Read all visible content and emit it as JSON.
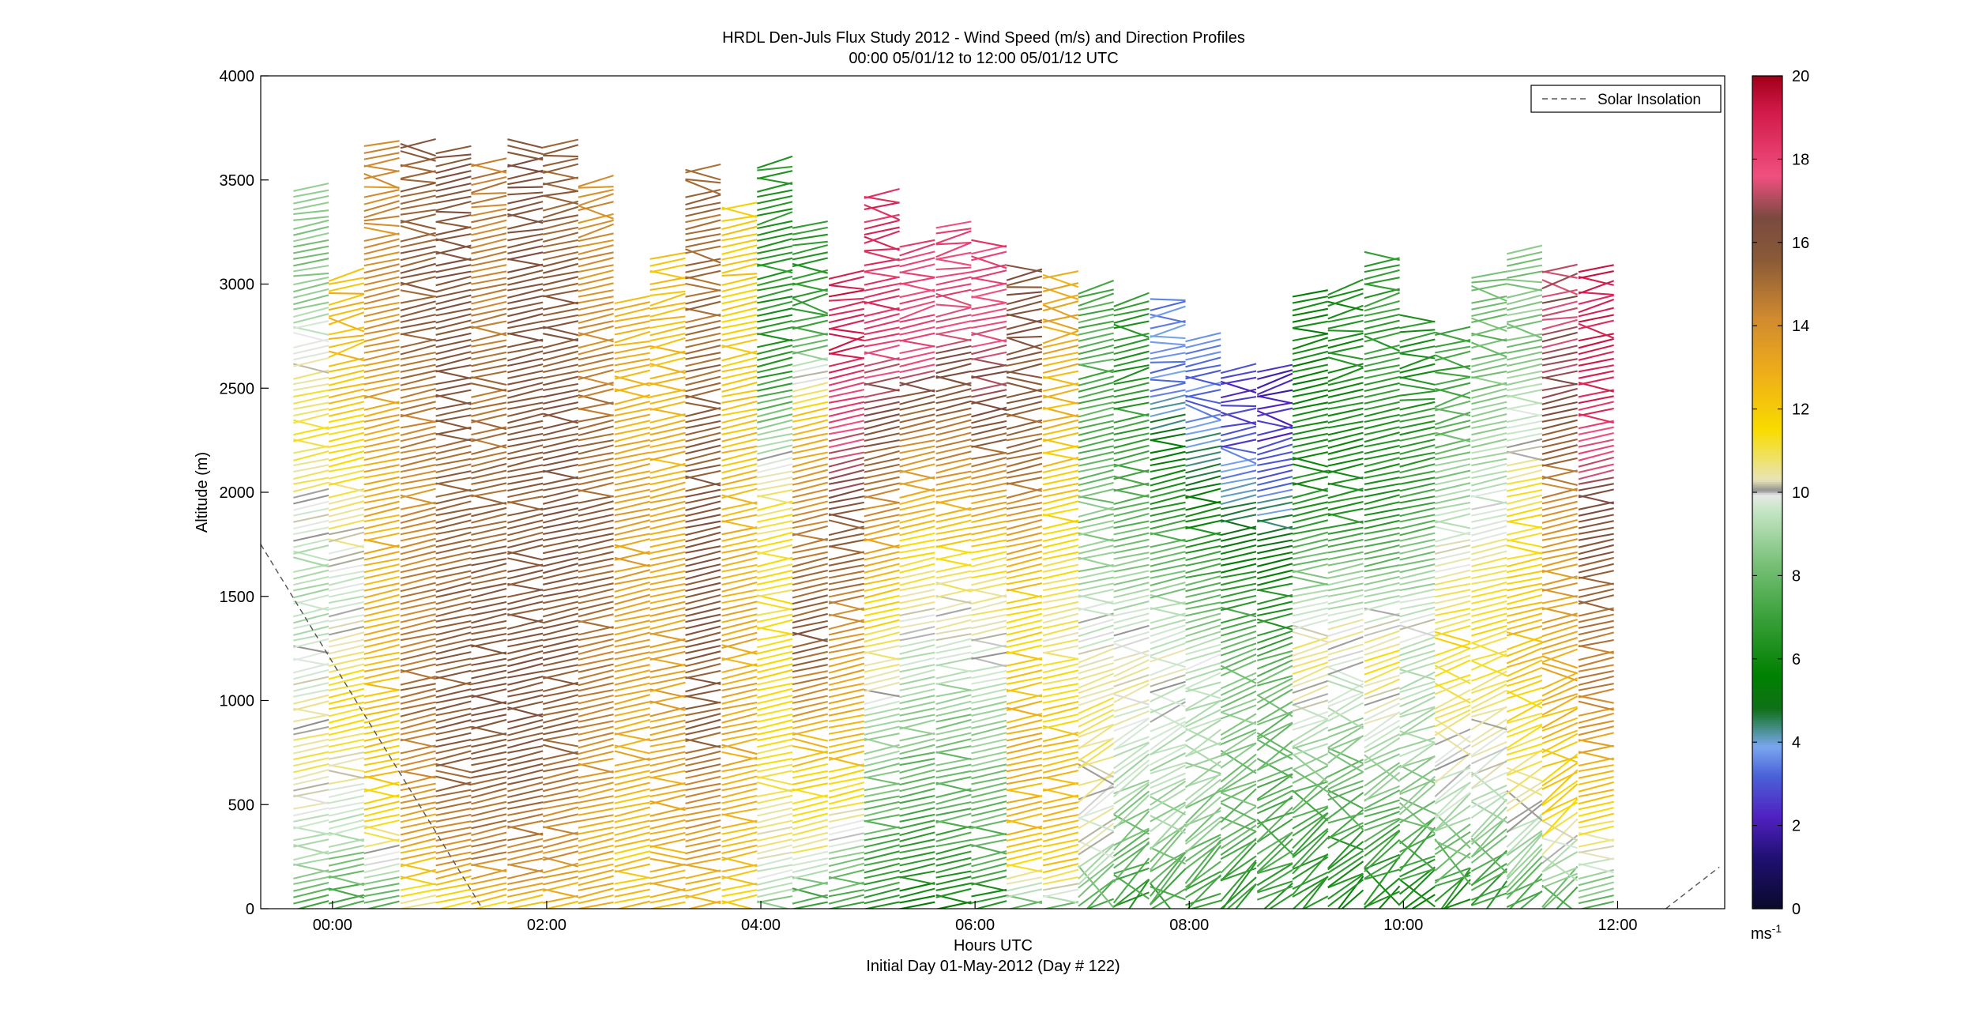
{
  "chart_data": {
    "type": "wind_barb_profile",
    "title": "HRDL Den-Juls Flux Study 2012 - Wind Speed (m/s) and Direction Profiles",
    "subtitle": "00:00 05/01/12 to 12:00 05/01/12  UTC",
    "xlabel": "Hours UTC",
    "xlabel2": "Initial Day 01-May-2012 (Day # 122)",
    "ylabel": "Altitude (m)",
    "xlim_hours": [
      -0.67,
      13.0
    ],
    "ylim": [
      0,
      4000
    ],
    "x_ticks": [
      {
        "value": 0,
        "label": "00:00"
      },
      {
        "value": 2,
        "label": "02:00"
      },
      {
        "value": 4,
        "label": "04:00"
      },
      {
        "value": 6,
        "label": "06:00"
      },
      {
        "value": 8,
        "label": "08:00"
      },
      {
        "value": 10,
        "label": "10:00"
      },
      {
        "value": 12,
        "label": "12:00"
      }
    ],
    "y_ticks": [
      {
        "value": 0,
        "label": "0"
      },
      {
        "value": 500,
        "label": "500"
      },
      {
        "value": 1000,
        "label": "1000"
      },
      {
        "value": 1500,
        "label": "1500"
      },
      {
        "value": 2000,
        "label": "2000"
      },
      {
        "value": 2500,
        "label": "2500"
      },
      {
        "value": 3000,
        "label": "3000"
      },
      {
        "value": 3500,
        "label": "3500"
      },
      {
        "value": 4000,
        "label": "4000"
      }
    ],
    "legend": {
      "entries": [
        {
          "name": "Solar Insolation",
          "style": "dashed",
          "color": "#555555"
        }
      ],
      "location": "top-right"
    },
    "colorbar": {
      "unit": "ms",
      "unit_exponent": "-1",
      "range": [
        0,
        20
      ],
      "tick_labels": [
        "0",
        "2",
        "4",
        "6",
        "8",
        "10",
        "12",
        "14",
        "16",
        "18",
        "20"
      ],
      "stops": [
        {
          "v": 0,
          "c": "#0a0a2a"
        },
        {
          "v": 1.2,
          "c": "#1e1070"
        },
        {
          "v": 2.2,
          "c": "#5020c0"
        },
        {
          "v": 3.2,
          "c": "#4a62d8"
        },
        {
          "v": 3.9,
          "c": "#7aa6f0"
        },
        {
          "v": 4.3,
          "c": "#4a9090"
        },
        {
          "v": 4.8,
          "c": "#107018"
        },
        {
          "v": 5.6,
          "c": "#008000"
        },
        {
          "v": 7.0,
          "c": "#3aa03a"
        },
        {
          "v": 8.3,
          "c": "#78c078"
        },
        {
          "v": 9.6,
          "c": "#c8e6c8"
        },
        {
          "v": 9.95,
          "c": "#e8e8e8"
        },
        {
          "v": 10.05,
          "c": "#909090"
        },
        {
          "v": 10.3,
          "c": "#e8e4b8"
        },
        {
          "v": 11.5,
          "c": "#f8dc00"
        },
        {
          "v": 12.8,
          "c": "#f0b018"
        },
        {
          "v": 14.2,
          "c": "#d08a30"
        },
        {
          "v": 15.6,
          "c": "#8a5a38"
        },
        {
          "v": 16.6,
          "c": "#7a4a40"
        },
        {
          "v": 17.6,
          "c": "#f05080"
        },
        {
          "v": 19.2,
          "c": "#d01848"
        },
        {
          "v": 20,
          "c": "#a00018"
        }
      ]
    },
    "solar_insolation": [
      {
        "hour": -0.67,
        "altitude": 1750
      },
      {
        "hour": 1.4,
        "altitude": 0
      },
      {
        "hour": 12.45,
        "altitude": 0
      },
      {
        "hour": 12.95,
        "altitude": 200
      }
    ],
    "profiles": [
      {
        "hour": -0.2,
        "top": 3470,
        "layers": [
          [
            0,
            7.5
          ],
          [
            300,
            9.2
          ],
          [
            700,
            10.8
          ],
          [
            1600,
            9
          ],
          [
            2300,
            11.5
          ],
          [
            3000,
            8.5
          ]
        ]
      },
      {
        "hour": 0.13,
        "top": 3050,
        "layers": [
          [
            0,
            7.2
          ],
          [
            400,
            9.5
          ],
          [
            1000,
            11.6
          ],
          [
            1500,
            9.6
          ],
          [
            2000,
            11
          ],
          [
            2600,
            12.5
          ]
        ]
      },
      {
        "hour": 0.46,
        "top": 3680,
        "layers": [
          [
            0,
            7
          ],
          [
            150,
            9
          ],
          [
            500,
            12
          ],
          [
            1200,
            12.6
          ],
          [
            2200,
            13
          ],
          [
            3000,
            14
          ]
        ]
      },
      {
        "hour": 0.8,
        "top": 3700,
        "layers": [
          [
            0,
            10.5
          ],
          [
            300,
            13
          ],
          [
            1000,
            15
          ],
          [
            2000,
            14
          ],
          [
            3000,
            15.5
          ]
        ]
      },
      {
        "hour": 1.13,
        "top": 3650,
        "layers": [
          [
            0,
            11
          ],
          [
            200,
            13.5
          ],
          [
            800,
            15.8
          ],
          [
            1800,
            15
          ],
          [
            2800,
            16
          ]
        ]
      },
      {
        "hour": 1.46,
        "top": 3600,
        "layers": [
          [
            0,
            11.5
          ],
          [
            250,
            14.5
          ],
          [
            1000,
            16
          ],
          [
            2000,
            15.2
          ],
          [
            3000,
            14.5
          ]
        ]
      },
      {
        "hour": 1.8,
        "top": 3700,
        "layers": [
          [
            0,
            12
          ],
          [
            200,
            14.2
          ],
          [
            900,
            16
          ],
          [
            2000,
            15.5
          ],
          [
            3000,
            16.2
          ]
        ]
      },
      {
        "hour": 2.13,
        "top": 3700,
        "layers": [
          [
            0,
            12.5
          ],
          [
            250,
            13.8
          ],
          [
            1000,
            15.6
          ],
          [
            2200,
            16
          ],
          [
            3200,
            15.4
          ]
        ]
      },
      {
        "hour": 2.46,
        "top": 3520,
        "layers": [
          [
            0,
            12.8
          ],
          [
            300,
            13
          ],
          [
            900,
            14.2
          ],
          [
            1800,
            15.6
          ],
          [
            2900,
            14
          ]
        ]
      },
      {
        "hour": 2.8,
        "top": 2930,
        "layers": [
          [
            0,
            12.5
          ],
          [
            250,
            12
          ],
          [
            800,
            13
          ],
          [
            1600,
            13.6
          ],
          [
            2400,
            12.8
          ]
        ]
      },
      {
        "hour": 3.13,
        "top": 3150,
        "layers": [
          [
            0,
            12.6
          ],
          [
            300,
            12.8
          ],
          [
            1000,
            13.5
          ],
          [
            1800,
            13
          ],
          [
            2600,
            12.4
          ]
        ]
      },
      {
        "hour": 3.46,
        "top": 3580,
        "layers": [
          [
            0,
            12.5
          ],
          [
            300,
            13.5
          ],
          [
            900,
            15.5
          ],
          [
            1800,
            16
          ],
          [
            2800,
            15
          ]
        ]
      },
      {
        "hour": 3.8,
        "top": 3380,
        "layers": [
          [
            0,
            11.8
          ],
          [
            300,
            12.5
          ],
          [
            1000,
            13.2
          ],
          [
            2000,
            12.6
          ],
          [
            2800,
            12
          ]
        ]
      },
      {
        "hour": 4.13,
        "top": 3600,
        "layers": [
          [
            0,
            8.5
          ],
          [
            300,
            10.5
          ],
          [
            900,
            11.5
          ],
          [
            2000,
            11
          ],
          [
            2600,
            6.5
          ]
        ]
      },
      {
        "hour": 4.46,
        "top": 3300,
        "layers": [
          [
            0,
            6.5
          ],
          [
            300,
            10.8
          ],
          [
            800,
            12.5
          ],
          [
            1300,
            15.8
          ],
          [
            2300,
            13
          ],
          [
            2800,
            6.8
          ]
        ]
      },
      {
        "hour": 4.8,
        "top": 3050,
        "layers": [
          [
            0,
            7
          ],
          [
            200,
            8.5
          ],
          [
            600,
            11.8
          ],
          [
            1200,
            13.5
          ],
          [
            1900,
            16
          ],
          [
            2700,
            19
          ]
        ]
      },
      {
        "hour": 5.13,
        "top": 3450,
        "layers": [
          [
            0,
            6.5
          ],
          [
            300,
            7.5
          ],
          [
            900,
            9.2
          ],
          [
            1600,
            12.5
          ],
          [
            2300,
            16
          ],
          [
            2800,
            18.5
          ]
        ]
      },
      {
        "hour": 5.46,
        "top": 3200,
        "layers": [
          [
            0,
            5.5
          ],
          [
            300,
            7
          ],
          [
            900,
            8.6
          ],
          [
            1500,
            10.5
          ],
          [
            2200,
            14
          ],
          [
            2700,
            18
          ]
        ]
      },
      {
        "hour": 5.8,
        "top": 3300,
        "layers": [
          [
            0,
            5.8
          ],
          [
            400,
            7.5
          ],
          [
            1000,
            8.8
          ],
          [
            1600,
            11
          ],
          [
            2300,
            15
          ],
          [
            2900,
            17.8
          ]
        ]
      },
      {
        "hour": 6.13,
        "top": 3200,
        "layers": [
          [
            0,
            6
          ],
          [
            300,
            7.8
          ],
          [
            1000,
            9
          ],
          [
            1700,
            11.5
          ],
          [
            2400,
            16.5
          ],
          [
            2900,
            18
          ]
        ]
      },
      {
        "hour": 6.46,
        "top": 3100,
        "layers": [
          [
            0,
            7.8
          ],
          [
            300,
            12.5
          ],
          [
            800,
            13
          ],
          [
            1400,
            11.5
          ],
          [
            2100,
            15
          ],
          [
            2800,
            16
          ]
        ]
      },
      {
        "hour": 6.8,
        "top": 3050,
        "layers": [
          [
            0,
            8
          ],
          [
            200,
            12
          ],
          [
            700,
            12.6
          ],
          [
            1300,
            10.5
          ],
          [
            2000,
            12
          ],
          [
            2700,
            13
          ]
        ]
      },
      {
        "hour": 7.13,
        "top": 3000,
        "layers": [
          [
            0,
            7.5
          ],
          [
            300,
            9.8
          ],
          [
            900,
            11
          ],
          [
            1600,
            9
          ],
          [
            2400,
            7.5
          ]
        ]
      },
      {
        "hour": 7.46,
        "top": 2950,
        "layers": [
          [
            0,
            6.5
          ],
          [
            400,
            8.5
          ],
          [
            1100,
            10.5
          ],
          [
            1800,
            8
          ],
          [
            2500,
            6.5
          ]
        ]
      },
      {
        "hour": 7.8,
        "top": 2950,
        "layers": [
          [
            0,
            7
          ],
          [
            400,
            8.8
          ],
          [
            1200,
            10
          ],
          [
            2000,
            6.5
          ],
          [
            2500,
            3.6
          ]
        ]
      },
      {
        "hour": 8.13,
        "top": 2750,
        "layers": [
          [
            0,
            6.8
          ],
          [
            400,
            8.5
          ],
          [
            1200,
            9.6
          ],
          [
            1900,
            5.8
          ],
          [
            2400,
            3.4
          ]
        ]
      },
      {
        "hour": 8.46,
        "top": 2620,
        "layers": [
          [
            0,
            6.5
          ],
          [
            400,
            8
          ],
          [
            1100,
            8.6
          ],
          [
            1800,
            5.2
          ],
          [
            2300,
            2.6
          ]
        ]
      },
      {
        "hour": 8.8,
        "top": 2600,
        "layers": [
          [
            0,
            6.5
          ],
          [
            400,
            7.5
          ],
          [
            1100,
            8
          ],
          [
            1800,
            4.8
          ],
          [
            2300,
            2.2
          ]
        ]
      },
      {
        "hour": 9.13,
        "top": 2980,
        "layers": [
          [
            0,
            6.2
          ],
          [
            400,
            7.2
          ],
          [
            1200,
            11
          ],
          [
            1900,
            6.5
          ],
          [
            2600,
            5.8
          ]
        ]
      },
      {
        "hour": 9.46,
        "top": 3000,
        "layers": [
          [
            0,
            6
          ],
          [
            500,
            7.5
          ],
          [
            1300,
            10.5
          ],
          [
            2000,
            6
          ],
          [
            2700,
            6.2
          ]
        ]
      },
      {
        "hour": 9.8,
        "top": 3150,
        "layers": [
          [
            0,
            5.8
          ],
          [
            500,
            8
          ],
          [
            1200,
            11.2
          ],
          [
            1900,
            6.5
          ],
          [
            2700,
            6.8
          ]
        ]
      },
      {
        "hour": 10.13,
        "top": 2850,
        "layers": [
          [
            0,
            6
          ],
          [
            600,
            8.8
          ],
          [
            1400,
            9.8
          ],
          [
            2000,
            7
          ],
          [
            2600,
            6.5
          ]
        ]
      },
      {
        "hour": 10.46,
        "top": 2800,
        "layers": [
          [
            0,
            6.2
          ],
          [
            500,
            9.5
          ],
          [
            1300,
            11.5
          ],
          [
            2000,
            9
          ],
          [
            2600,
            7
          ]
        ]
      },
      {
        "hour": 10.8,
        "top": 3050,
        "layers": [
          [
            0,
            6.5
          ],
          [
            600,
            9.8
          ],
          [
            1400,
            11.6
          ],
          [
            2000,
            9.5
          ],
          [
            2700,
            8
          ]
        ]
      },
      {
        "hour": 11.13,
        "top": 3180,
        "layers": [
          [
            0,
            7
          ],
          [
            500,
            10.5
          ],
          [
            1300,
            12.5
          ],
          [
            2000,
            11
          ],
          [
            2700,
            8.5
          ]
        ]
      },
      {
        "hour": 11.46,
        "top": 3100,
        "layers": [
          [
            0,
            7.2
          ],
          [
            500,
            11.8
          ],
          [
            1200,
            13
          ],
          [
            1900,
            14
          ],
          [
            2600,
            17
          ]
        ]
      },
      {
        "hour": 11.8,
        "top": 3080,
        "layers": [
          [
            0,
            7.5
          ],
          [
            500,
            12.2
          ],
          [
            1100,
            14.5
          ],
          [
            1800,
            15.8
          ],
          [
            2500,
            19
          ]
        ]
      }
    ]
  }
}
